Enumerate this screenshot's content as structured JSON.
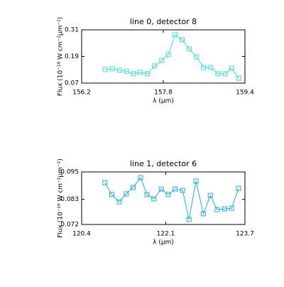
{
  "chart_data": [
    {
      "type": "line",
      "title": "line 0, detector 8",
      "xlabel": "λ (µm)",
      "ylabel": "Flux (10⁻¹⁸ W cm⁻²µm⁻¹)",
      "x": [
        156.66,
        156.8,
        156.94,
        157.08,
        157.22,
        157.35,
        157.49,
        157.63,
        157.77,
        157.9,
        158.03,
        158.17,
        158.31,
        158.45,
        158.59,
        158.73,
        158.87,
        159.01,
        159.14,
        159.28
      ],
      "values": [
        0.131,
        0.134,
        0.128,
        0.124,
        0.112,
        0.118,
        0.112,
        0.147,
        0.172,
        0.198,
        0.288,
        0.265,
        0.224,
        0.188,
        0.14,
        0.14,
        0.112,
        0.112,
        0.137,
        0.092
      ],
      "color": "#3fe0d0",
      "xlim": [
        156.2,
        159.4
      ],
      "xticks": [
        156.2,
        157.8,
        159.4
      ],
      "ylim": [
        0.07,
        0.31
      ],
      "yticks": [
        0.07,
        0.19,
        0.31
      ]
    },
    {
      "type": "line",
      "title": "line 1, detector 6",
      "xlabel": "λ (µm)",
      "ylabel": "Flux (10⁻¹⁸ W cm⁻²µm⁻¹)",
      "x": [
        120.87,
        121.01,
        121.16,
        121.3,
        121.44,
        121.59,
        121.72,
        121.86,
        122.01,
        122.15,
        122.29,
        122.44,
        122.57,
        122.71,
        122.86,
        123.0,
        123.14,
        123.29,
        123.43,
        123.57
      ],
      "values": [
        0.0903,
        0.0851,
        0.0819,
        0.0854,
        0.0882,
        0.0925,
        0.0851,
        0.0832,
        0.0875,
        0.0851,
        0.0875,
        0.0869,
        0.0742,
        0.091,
        0.0767,
        0.0847,
        0.0785,
        0.0788,
        0.0791,
        0.0878
      ],
      "color": "#22b0d6",
      "xlim": [
        120.4,
        123.7
      ],
      "xticks": [
        120.4,
        122.1,
        123.7
      ],
      "ylim": [
        0.072,
        0.095
      ],
      "yticks": [
        0.072,
        0.083,
        0.095
      ]
    }
  ]
}
